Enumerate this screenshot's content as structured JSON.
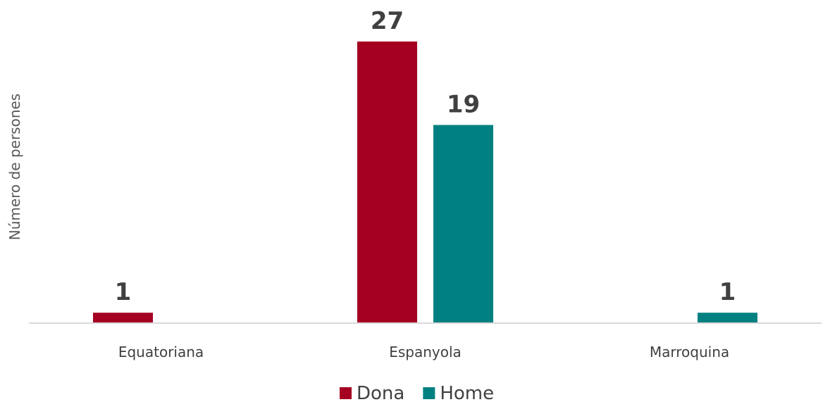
{
  "chart_data": {
    "type": "bar",
    "ylabel": "Número de persones",
    "categories": [
      "Equatoriana",
      "Espanyola",
      "Marroquina"
    ],
    "series": [
      {
        "name": "Dona",
        "color": "#A50021",
        "values": [
          1,
          27,
          null
        ]
      },
      {
        "name": "Home",
        "color": "#008080",
        "values": [
          null,
          19,
          1
        ]
      }
    ],
    "ylim": [
      0,
      27
    ],
    "grid": false,
    "legend": "bottom"
  }
}
